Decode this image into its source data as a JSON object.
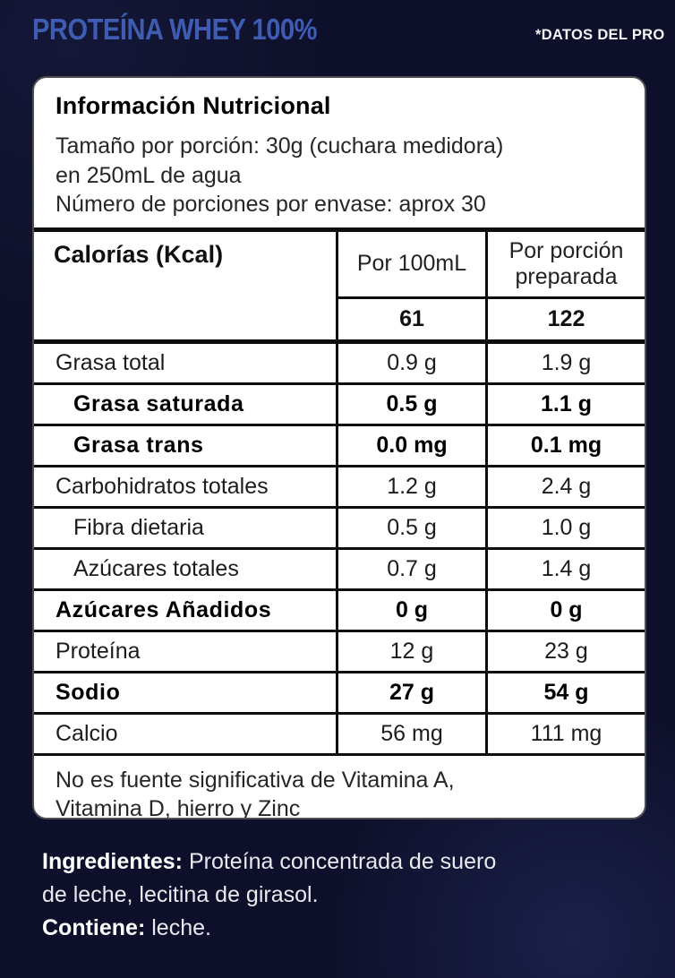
{
  "page": {
    "title": "PROTEÍNA WHEY 100%",
    "corner_note": "*DATOS DEL PRO",
    "colors": {
      "background_navy": "#0e102b",
      "title_blue": "#3f5cb3",
      "panel_white": "#ffffff",
      "panel_border_gray": "#4f4f4f",
      "table_ink": "#0d0d0d",
      "corner_note_white": "#f4f4f6"
    }
  },
  "panel": {
    "heading": "Información Nutricional",
    "serving_lines": [
      "Tamaño por porción: 30g (cuchara medidora)",
      "en 250mL de agua",
      "Número de porciones por envase: aprox 30"
    ],
    "table": {
      "header": {
        "label": "Calorías (Kcal)",
        "col_per_100ml": "Por 100mL",
        "col_per_serving": "Por porción preparada",
        "calories_per_100ml": "61",
        "calories_per_serving": "122"
      },
      "rows": [
        {
          "label": "Grasa total",
          "per_100ml": "0.9 g",
          "per_serving": "1.9 g",
          "bold": false,
          "indent": false
        },
        {
          "label": "Grasa saturada",
          "per_100ml": "0.5 g",
          "per_serving": "1.1 g",
          "bold": true,
          "indent": true
        },
        {
          "label": "Grasa trans",
          "per_100ml": "0.0 mg",
          "per_serving": "0.1 mg",
          "bold": true,
          "indent": true
        },
        {
          "label": "Carbohidratos totales",
          "per_100ml": "1.2 g",
          "per_serving": "2.4 g",
          "bold": false,
          "indent": false
        },
        {
          "label": "Fibra dietaria",
          "per_100ml": "0.5 g",
          "per_serving": "1.0 g",
          "bold": false,
          "indent": true
        },
        {
          "label": "Azúcares totales",
          "per_100ml": "0.7 g",
          "per_serving": "1.4 g",
          "bold": false,
          "indent": true
        },
        {
          "label": "Azúcares Añadidos",
          "per_100ml": "0 g",
          "per_serving": "0 g",
          "bold": true,
          "indent": false
        },
        {
          "label": "Proteína",
          "per_100ml": "12 g",
          "per_serving": "23 g",
          "bold": false,
          "indent": false
        },
        {
          "label": "Sodio",
          "per_100ml": "27 g",
          "per_serving": "54 g",
          "bold": true,
          "indent": false
        },
        {
          "label": "Calcio",
          "per_100ml": "56 mg",
          "per_serving": "111 mg",
          "bold": false,
          "indent": false
        }
      ]
    },
    "footnote_lines": [
      "No es fuente significativa de Vitamina A,",
      "Vitamina D, hierro  y Zinc"
    ]
  },
  "ingredients": {
    "label": "Ingredientes:",
    "line1_rest": "Proteína concentrada de suero",
    "line2": "de leche, lecitina de girasol.",
    "contains_label": "Contiene:",
    "contains_text": "leche."
  }
}
